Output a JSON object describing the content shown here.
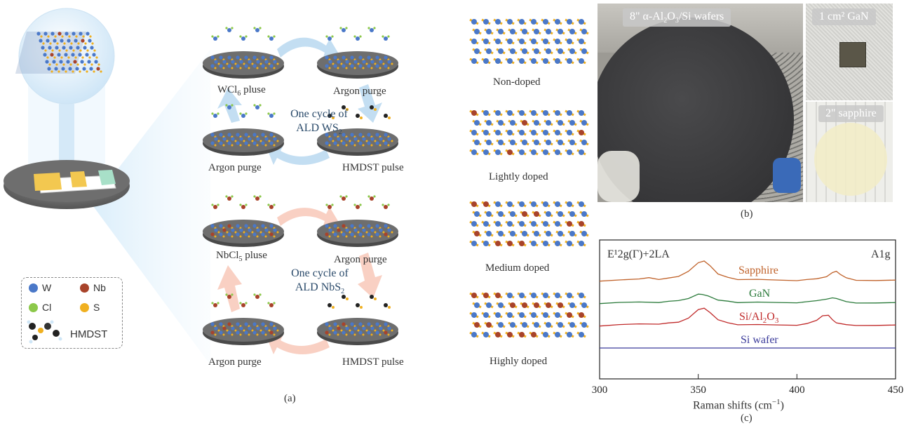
{
  "panel_a": {
    "caption": "(a)",
    "ws2_cycle": {
      "label_line1": "One cycle of",
      "label_line2": "ALD WS",
      "label_sub": "2",
      "step_wcl6": "WCl",
      "step_wcl6_sub": "6",
      "step_wcl6_rest": " pluse",
      "step_argon_1": "Argon purge",
      "step_argon_2": "Argon purge",
      "step_hmdst": "HMDST pulse"
    },
    "nbs2_cycle": {
      "label_line1": "One cycle of",
      "label_line2": "ALD NbS",
      "label_sub": "2",
      "step_nbcl5": "NbCl",
      "step_nbcl5_sub": "5",
      "step_nbcl5_rest": " pluse",
      "step_argon_1": "Argon purge",
      "step_argon_2": "Argon purge",
      "step_hmdst": "HMDST pulse"
    },
    "doping_levels": [
      "Non-doped",
      "Lightly doped",
      "Medium doped",
      "Highly doped"
    ],
    "legend": {
      "w": "W",
      "nb": "Nb",
      "cl": "Cl",
      "s": "S",
      "hmdst": "HMDST"
    },
    "colors": {
      "w": "#4a78c8",
      "nb": "#a8432a",
      "cl": "#8cc84a",
      "s": "#f0b020",
      "blue_arrow": "#b8d8f0",
      "pink_arrow": "#f8c8b8"
    }
  },
  "panel_b": {
    "caption": "(b)",
    "wafer_tag_prefix": "8\" α-Al",
    "wafer_tag_sub1": "2",
    "wafer_tag_mid": "O",
    "wafer_tag_sub2": "3",
    "wafer_tag_suffix": "/Si wafers",
    "gan_tag": "1 cm² GaN",
    "sapphire_tag": "2\" sapphire"
  },
  "panel_c": {
    "caption": "(c)",
    "chart_data": {
      "type": "line",
      "xlabel": "Raman shifts (cm",
      "xlabel_sup": "−1",
      "xlabel_close": ")",
      "xlim": [
        300,
        450
      ],
      "x_ticks": [
        "300",
        "350",
        "400",
        "450"
      ],
      "annotation_left": "E¹2g(Γ)+2LA",
      "annotation_right": "A1g",
      "series": [
        {
          "name": "Sapphire",
          "color": "#c0622a",
          "offset": 3,
          "x": [
            300,
            310,
            320,
            325,
            330,
            335,
            340,
            345,
            350,
            353,
            356,
            360,
            365,
            370,
            380,
            390,
            400,
            405,
            410,
            415,
            418,
            420,
            422,
            425,
            430,
            440,
            450
          ],
          "y": [
            0.0,
            0.01,
            0.05,
            0.1,
            0.06,
            0.08,
            0.15,
            0.35,
            0.62,
            0.7,
            0.55,
            0.25,
            0.1,
            0.05,
            0.03,
            0.02,
            0.02,
            0.03,
            0.06,
            0.16,
            0.3,
            0.32,
            0.24,
            0.1,
            0.03,
            0.01,
            0.0
          ]
        },
        {
          "name": "GaN",
          "color": "#2a7a3a",
          "offset": 2,
          "x": [
            300,
            310,
            320,
            330,
            335,
            340,
            345,
            350,
            352,
            355,
            360,
            365,
            370,
            380,
            390,
            400,
            405,
            410,
            415,
            418,
            420,
            425,
            430,
            440,
            450
          ],
          "y": [
            0.0,
            0.01,
            0.03,
            0.04,
            0.05,
            0.09,
            0.18,
            0.3,
            0.33,
            0.26,
            0.12,
            0.05,
            0.03,
            0.02,
            0.02,
            0.03,
            0.04,
            0.08,
            0.16,
            0.2,
            0.15,
            0.05,
            0.02,
            0.01,
            0.0
          ]
        },
        {
          "name": "Si/Al2O3",
          "color": "#c02a2a",
          "offset": 1,
          "x": [
            300,
            310,
            320,
            330,
            335,
            340,
            345,
            350,
            353,
            356,
            360,
            365,
            370,
            380,
            390,
            400,
            405,
            410,
            413,
            416,
            418,
            420,
            425,
            430,
            440,
            450
          ],
          "y": [
            0.0,
            0.02,
            0.05,
            0.07,
            0.08,
            0.12,
            0.28,
            0.55,
            0.62,
            0.48,
            0.22,
            0.08,
            0.04,
            0.02,
            0.02,
            0.03,
            0.06,
            0.18,
            0.33,
            0.36,
            0.22,
            0.08,
            0.03,
            0.02,
            0.01,
            0.0
          ]
        },
        {
          "name": "Si wafer",
          "color": "#3a3a9a",
          "offset": 0,
          "x": [
            300,
            450
          ],
          "y": [
            0.0,
            0.0
          ]
        }
      ],
      "series_labels": {
        "sapphire": "Sapphire",
        "gan": "GaN",
        "sial_prefix": "Si/Al",
        "sial_sub1": "2",
        "sial_mid": "O",
        "sial_sub2": "3",
        "siwafer": "Si wafer"
      }
    }
  }
}
